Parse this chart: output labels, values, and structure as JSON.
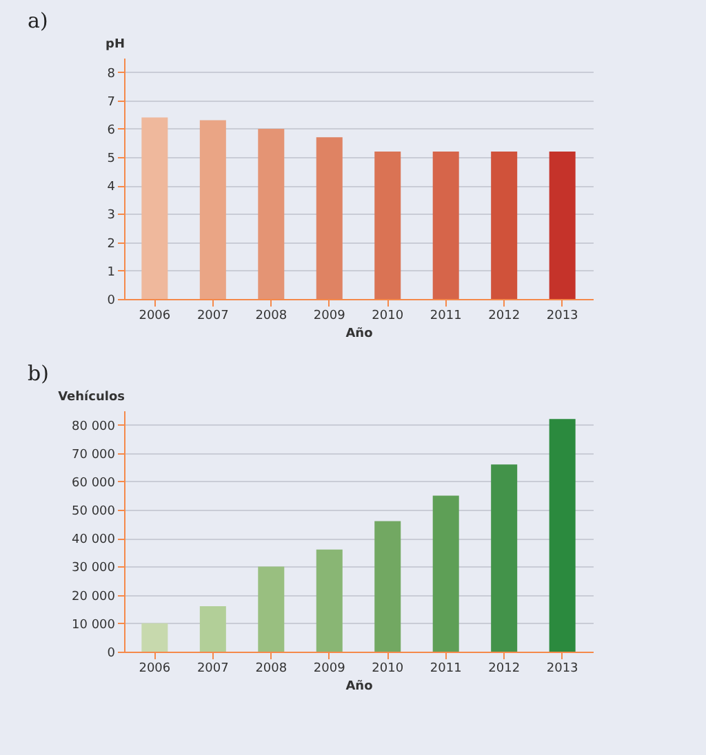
{
  "chart_data": [
    {
      "type": "bar",
      "title": "a)",
      "xlabel": "Año",
      "ylabel": "pH",
      "categories": [
        "2006",
        "2007",
        "2008",
        "2009",
        "2010",
        "2011",
        "2012",
        "2013"
      ],
      "values": [
        6.4,
        6.3,
        6.0,
        5.7,
        5.2,
        5.2,
        5.2,
        5.2
      ],
      "colors": [
        "#efb89c",
        "#eaa585",
        "#e49474",
        "#df8363",
        "#da7354",
        "#d6654a",
        "#d0523a",
        "#c5332a"
      ],
      "ylim": [
        0,
        8.5
      ],
      "yticks": [
        0,
        1,
        2,
        3,
        4,
        5,
        6,
        7,
        8
      ],
      "grid": "y"
    },
    {
      "type": "bar",
      "title": "b)",
      "xlabel": "Año",
      "ylabel": "Vehículos",
      "categories": [
        "2006",
        "2007",
        "2008",
        "2009",
        "2010",
        "2011",
        "2012",
        "2013"
      ],
      "values": [
        10000,
        16000,
        30000,
        36000,
        46000,
        55000,
        66000,
        82000
      ],
      "colors": [
        "#c7d9ad",
        "#b2cf98",
        "#99bf80",
        "#89b674",
        "#72a862",
        "#5e9f56",
        "#43934a",
        "#2b8a3e"
      ],
      "ylim": [
        0,
        85000
      ],
      "yticks": [
        0,
        {
          "value": 10000,
          "label": "10 000"
        },
        {
          "value": 20000,
          "label": "20 000"
        },
        {
          "value": 30000,
          "label": "30 000"
        },
        {
          "value": 40000,
          "label": "40 000"
        },
        {
          "value": 50000,
          "label": "50 000"
        },
        {
          "value": 60000,
          "label": "60 000"
        },
        {
          "value": 70000,
          "label": "70 000"
        },
        {
          "value": 80000,
          "label": "80 000"
        }
      ],
      "grid": "y"
    }
  ]
}
